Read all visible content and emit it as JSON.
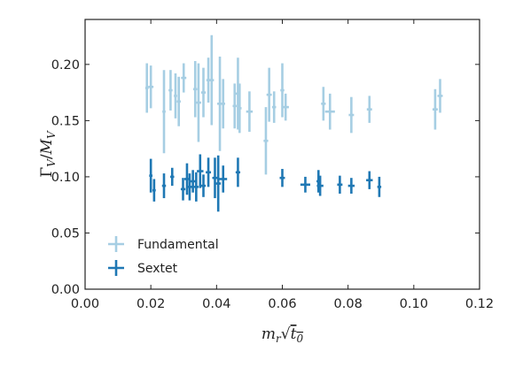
{
  "chart_data": {
    "type": "scatter",
    "xlabel": "m_r√t₀",
    "ylabel": "Γ_V/M_V",
    "xlim": [
      0.0,
      0.12
    ],
    "ylim": [
      0.0,
      0.24
    ],
    "xticks": [
      "0.00",
      "0.02",
      "0.04",
      "0.06",
      "0.08",
      "0.10",
      "0.12"
    ],
    "yticks": [
      "0.00",
      "0.05",
      "0.10",
      "0.15",
      "0.20"
    ],
    "grid": false,
    "legend": "lower-left",
    "series": [
      {
        "name": "Fundamental",
        "color": "#a6cee3",
        "points": [
          {
            "x": 0.0188,
            "xerr": 0.0005,
            "y": 0.179,
            "yerr": 0.022
          },
          {
            "x": 0.02,
            "xerr": 0.0008,
            "y": 0.18,
            "yerr": 0.019
          },
          {
            "x": 0.024,
            "xerr": 0.0005,
            "y": 0.158,
            "yerr": 0.037
          },
          {
            "x": 0.026,
            "xerr": 0.0006,
            "y": 0.177,
            "yerr": 0.018
          },
          {
            "x": 0.0275,
            "xerr": 0.0005,
            "y": 0.172,
            "yerr": 0.02
          },
          {
            "x": 0.0285,
            "xerr": 0.0006,
            "y": 0.167,
            "yerr": 0.022
          },
          {
            "x": 0.03,
            "xerr": 0.0008,
            "y": 0.188,
            "yerr": 0.013
          },
          {
            "x": 0.0335,
            "xerr": 0.0006,
            "y": 0.178,
            "yerr": 0.025
          },
          {
            "x": 0.0345,
            "xerr": 0.0008,
            "y": 0.166,
            "yerr": 0.035
          },
          {
            "x": 0.036,
            "xerr": 0.0007,
            "y": 0.175,
            "yerr": 0.022
          },
          {
            "x": 0.0375,
            "xerr": 0.0006,
            "y": 0.186,
            "yerr": 0.02
          },
          {
            "x": 0.0385,
            "xerr": 0.0007,
            "y": 0.186,
            "yerr": 0.04
          },
          {
            "x": 0.041,
            "xerr": 0.0008,
            "y": 0.165,
            "yerr": 0.042
          },
          {
            "x": 0.042,
            "xerr": 0.0006,
            "y": 0.165,
            "yerr": 0.022
          },
          {
            "x": 0.0455,
            "xerr": 0.0006,
            "y": 0.163,
            "yerr": 0.02
          },
          {
            "x": 0.0465,
            "xerr": 0.0007,
            "y": 0.174,
            "yerr": 0.032
          },
          {
            "x": 0.047,
            "xerr": 0.0006,
            "y": 0.161,
            "yerr": 0.022
          },
          {
            "x": 0.05,
            "xerr": 0.001,
            "y": 0.158,
            "yerr": 0.018
          },
          {
            "x": 0.055,
            "xerr": 0.0007,
            "y": 0.132,
            "yerr": 0.03
          },
          {
            "x": 0.056,
            "xerr": 0.0008,
            "y": 0.173,
            "yerr": 0.024
          },
          {
            "x": 0.0575,
            "xerr": 0.0006,
            "y": 0.162,
            "yerr": 0.014
          },
          {
            "x": 0.06,
            "xerr": 0.0006,
            "y": 0.177,
            "yerr": 0.024
          },
          {
            "x": 0.061,
            "xerr": 0.001,
            "y": 0.162,
            "yerr": 0.012
          },
          {
            "x": 0.0725,
            "xerr": 0.0007,
            "y": 0.165,
            "yerr": 0.015
          },
          {
            "x": 0.0745,
            "xerr": 0.0015,
            "y": 0.158,
            "yerr": 0.016
          },
          {
            "x": 0.081,
            "xerr": 0.0008,
            "y": 0.155,
            "yerr": 0.016
          },
          {
            "x": 0.0865,
            "xerr": 0.0008,
            "y": 0.16,
            "yerr": 0.012
          },
          {
            "x": 0.1065,
            "xerr": 0.0008,
            "y": 0.16,
            "yerr": 0.018
          },
          {
            "x": 0.108,
            "xerr": 0.0008,
            "y": 0.172,
            "yerr": 0.015
          }
        ]
      },
      {
        "name": "Sextet",
        "color": "#1f78b4",
        "points": [
          {
            "x": 0.02,
            "xerr": 0.0005,
            "y": 0.101,
            "yerr": 0.015
          },
          {
            "x": 0.021,
            "xerr": 0.0005,
            "y": 0.088,
            "yerr": 0.01
          },
          {
            "x": 0.024,
            "xerr": 0.0006,
            "y": 0.092,
            "yerr": 0.011
          },
          {
            "x": 0.0265,
            "xerr": 0.0006,
            "y": 0.1,
            "yerr": 0.008
          },
          {
            "x": 0.0298,
            "xerr": 0.0007,
            "y": 0.089,
            "yerr": 0.01
          },
          {
            "x": 0.031,
            "xerr": 0.0008,
            "y": 0.098,
            "yerr": 0.014
          },
          {
            "x": 0.0318,
            "xerr": 0.0007,
            "y": 0.091,
            "yerr": 0.012
          },
          {
            "x": 0.0328,
            "xerr": 0.0008,
            "y": 0.096,
            "yerr": 0.01
          },
          {
            "x": 0.0338,
            "xerr": 0.0007,
            "y": 0.091,
            "yerr": 0.013
          },
          {
            "x": 0.035,
            "xerr": 0.001,
            "y": 0.105,
            "yerr": 0.015
          },
          {
            "x": 0.036,
            "xerr": 0.0007,
            "y": 0.092,
            "yerr": 0.01
          },
          {
            "x": 0.0375,
            "xerr": 0.0008,
            "y": 0.104,
            "yerr": 0.013
          },
          {
            "x": 0.0395,
            "xerr": 0.0008,
            "y": 0.099,
            "yerr": 0.018
          },
          {
            "x": 0.0405,
            "xerr": 0.0008,
            "y": 0.094,
            "yerr": 0.025
          },
          {
            "x": 0.042,
            "xerr": 0.0012,
            "y": 0.098,
            "yerr": 0.012
          },
          {
            "x": 0.0465,
            "xerr": 0.0007,
            "y": 0.104,
            "yerr": 0.013
          },
          {
            "x": 0.06,
            "xerr": 0.0008,
            "y": 0.099,
            "yerr": 0.008
          },
          {
            "x": 0.067,
            "xerr": 0.0015,
            "y": 0.093,
            "yerr": 0.007
          },
          {
            "x": 0.071,
            "xerr": 0.0006,
            "y": 0.096,
            "yerr": 0.01
          },
          {
            "x": 0.0715,
            "xerr": 0.001,
            "y": 0.092,
            "yerr": 0.009
          },
          {
            "x": 0.0775,
            "xerr": 0.0008,
            "y": 0.093,
            "yerr": 0.008
          },
          {
            "x": 0.081,
            "xerr": 0.001,
            "y": 0.092,
            "yerr": 0.007
          },
          {
            "x": 0.0865,
            "xerr": 0.001,
            "y": 0.097,
            "yerr": 0.008
          },
          {
            "x": 0.0895,
            "xerr": 0.0006,
            "y": 0.091,
            "yerr": 0.009
          }
        ]
      }
    ]
  }
}
